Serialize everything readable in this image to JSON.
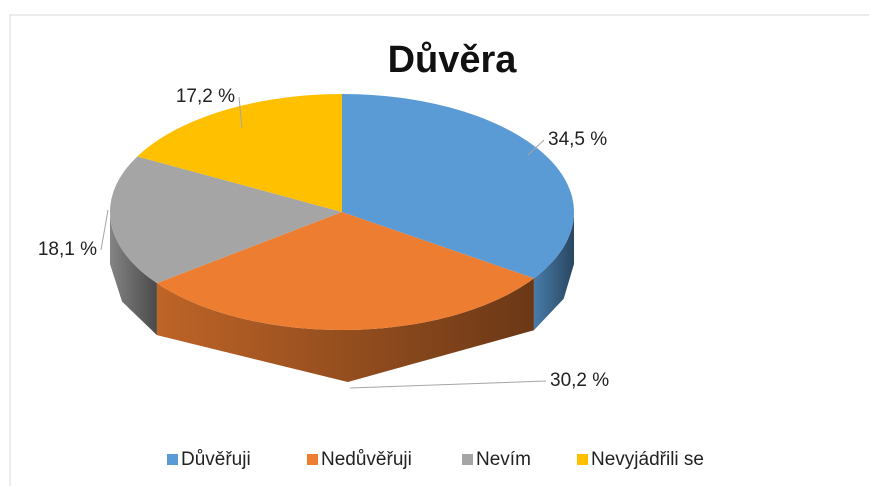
{
  "chart_data": {
    "type": "pie",
    "title": "Důvěra",
    "categories": [
      "Důvěřuji",
      "Nedůvěřuji",
      "Nevím",
      "Nevyjádřili se"
    ],
    "values": [
      34.5,
      30.2,
      18.1,
      17.2
    ],
    "value_labels": [
      "34,5 %",
      "30,2 %",
      "18,1 %",
      "17,2 %"
    ],
    "colors": [
      "#5b9bd5",
      "#ed7d31",
      "#a5a5a5",
      "#ffc000"
    ],
    "legend": "bottom"
  }
}
